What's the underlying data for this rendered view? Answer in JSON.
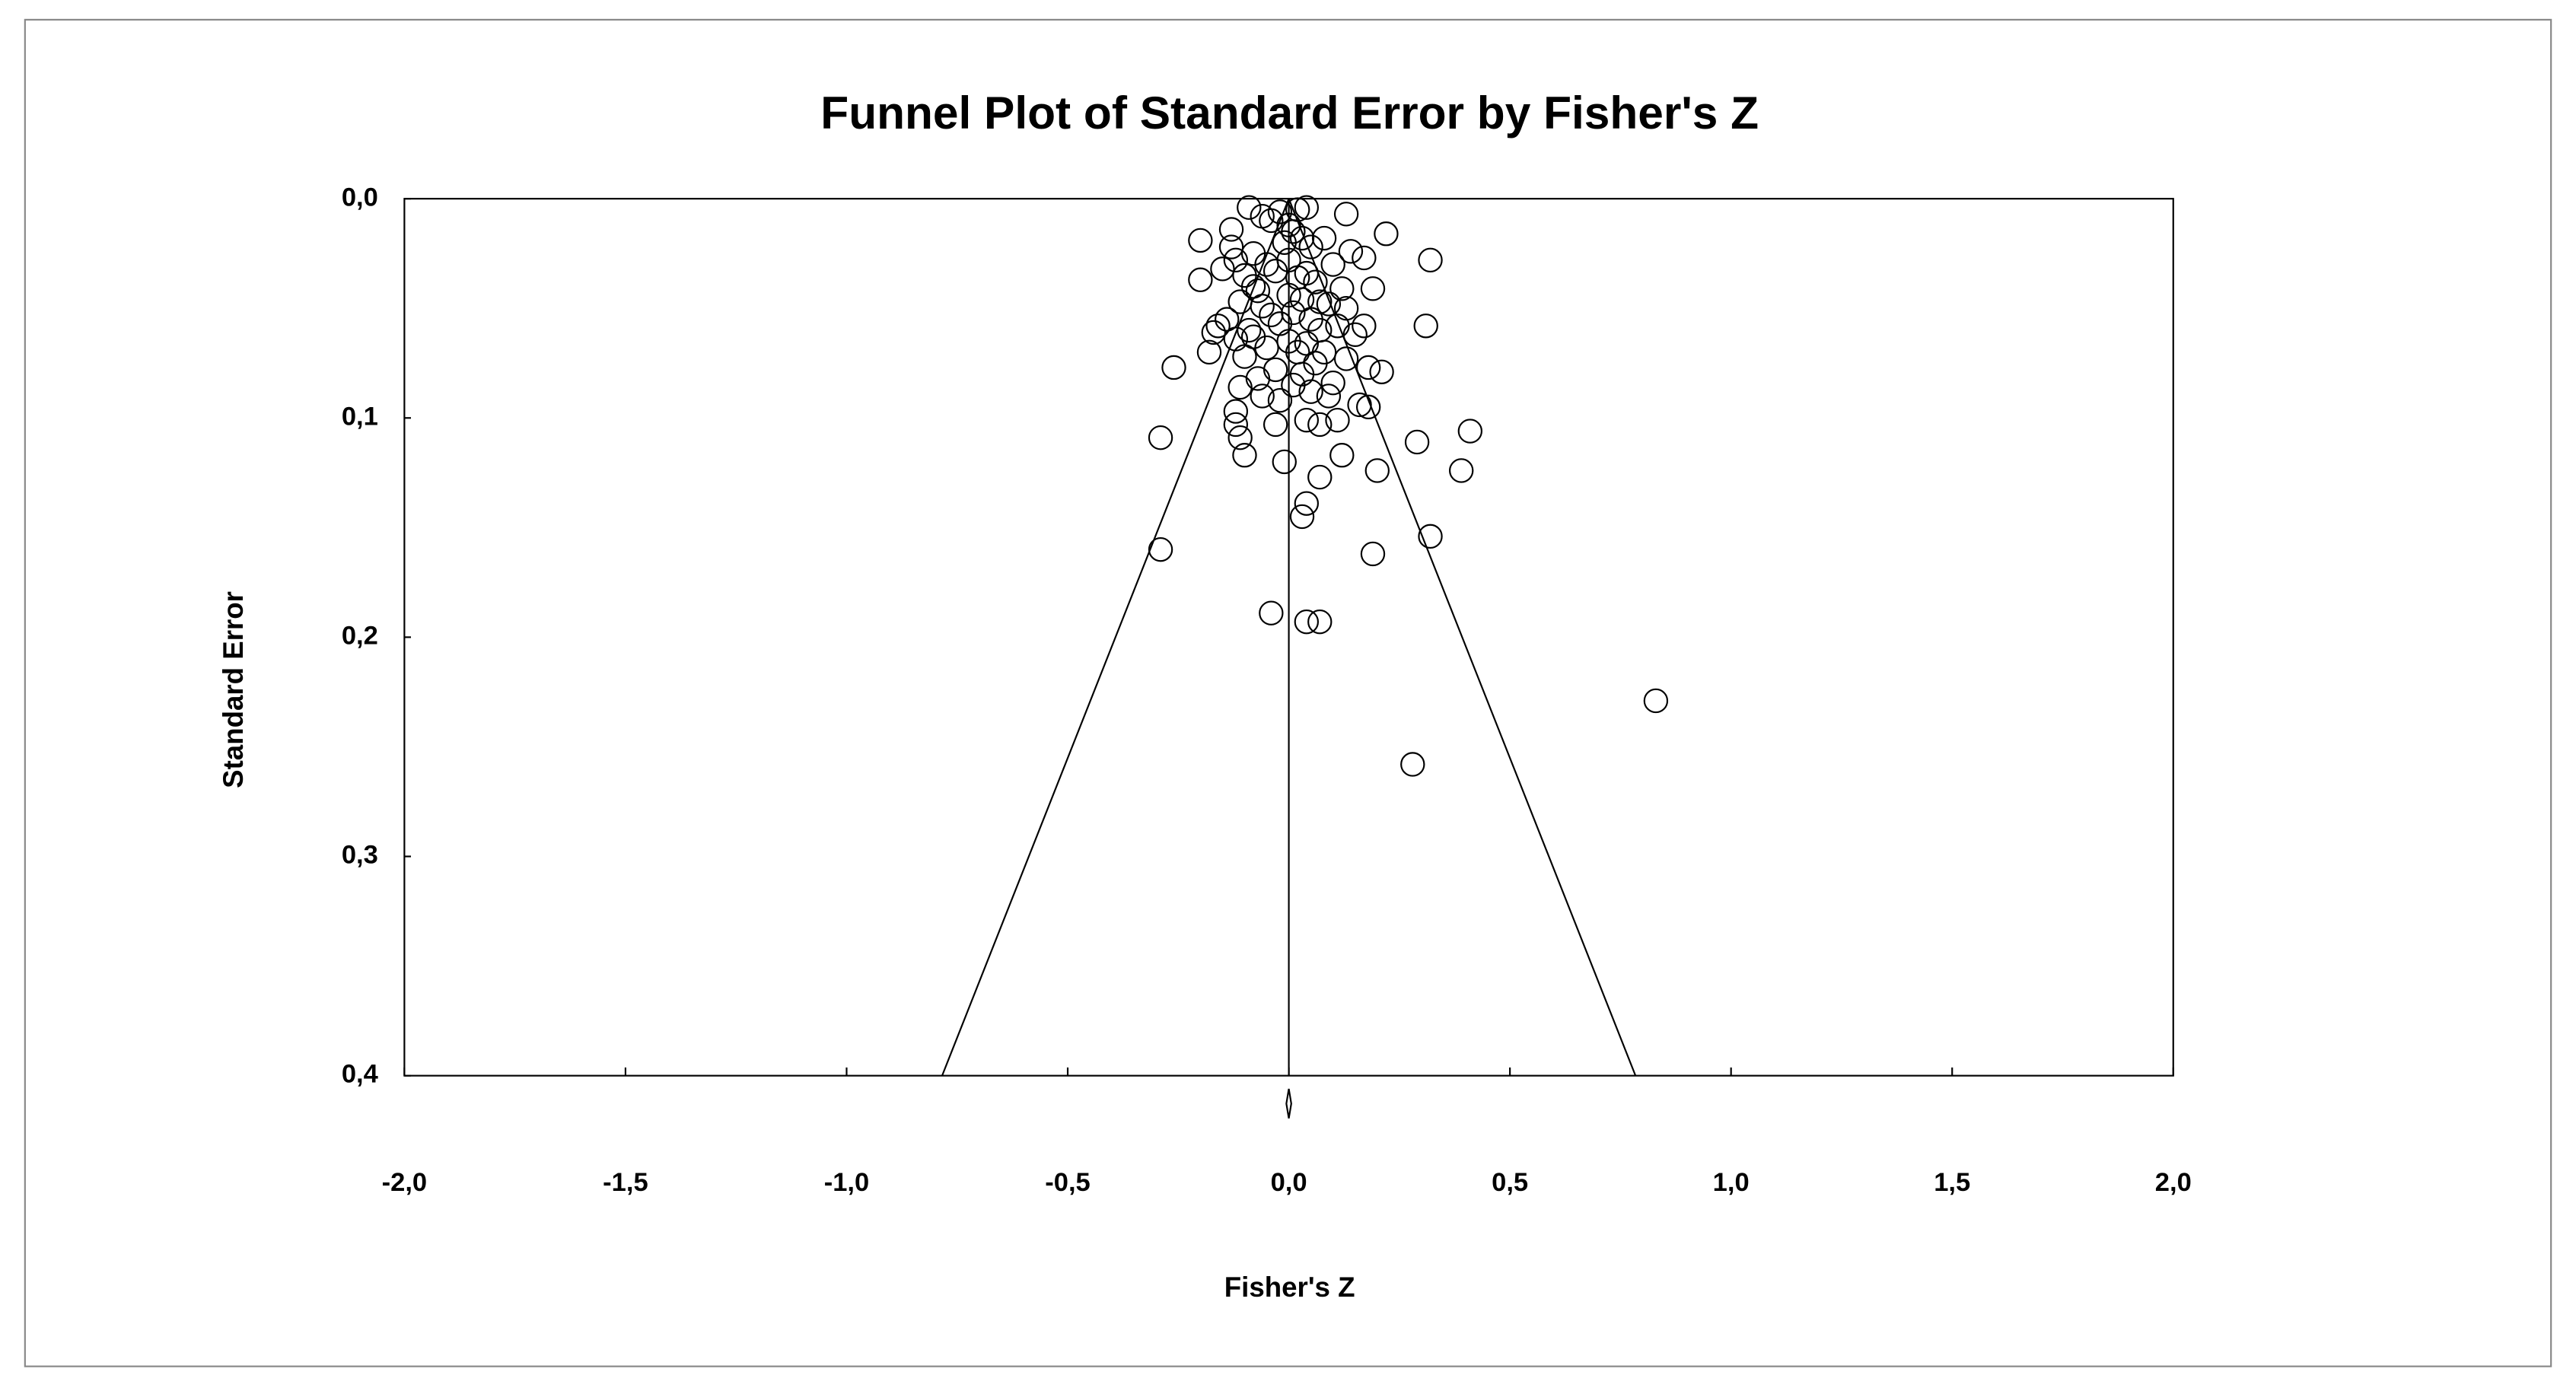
{
  "chart_data": {
    "type": "scatter",
    "title": "Funnel Plot of Standard Error by Fisher's Z",
    "xlabel": "Fisher's Z",
    "ylabel": "Standard Error",
    "xlim": [
      -2,
      2
    ],
    "ylim": [
      0,
      0.4
    ],
    "y_inverted": true,
    "xticks": [
      {
        "value": -2,
        "label": "-2,0"
      },
      {
        "value": -1.5,
        "label": "-1,5"
      },
      {
        "value": -1,
        "label": "-1,0"
      },
      {
        "value": -0.5,
        "label": "-0,5"
      },
      {
        "value": 0,
        "label": "0,0"
      },
      {
        "value": 0.5,
        "label": "0,5"
      },
      {
        "value": 1,
        "label": "1,0"
      },
      {
        "value": 1.5,
        "label": "1,5"
      },
      {
        "value": 2,
        "label": "2,0"
      }
    ],
    "yticks": [
      {
        "value": 0,
        "label": "0,0"
      },
      {
        "value": 0.1,
        "label": "0,1"
      },
      {
        "value": 0.2,
        "label": "0,2"
      },
      {
        "value": 0.3,
        "label": "0,3"
      },
      {
        "value": 0.4,
        "label": "0,4"
      }
    ],
    "funnel_center": 0,
    "funnel_z": 1.96,
    "color": "#000000",
    "x": [
      0.83,
      0.28,
      -0.04,
      0.04,
      0.07,
      -0.29,
      0.19,
      0.32,
      0.03,
      0.04,
      0.07,
      0.2,
      0.39,
      0.41,
      0.29,
      -0.29,
      0.12,
      -0.01,
      -0.1,
      -0.11,
      -0.12,
      -0.12,
      -0.03,
      0.04,
      0.07,
      0.11,
      0.18,
      -0.26,
      0.21,
      0.18,
      0.31,
      0.32,
      0.22,
      0.13,
      -0.09,
      -0.2,
      -0.2,
      -0.17,
      -0.18,
      0.19,
      0.17,
      0.17,
      -0.06,
      -0.02,
      0.02,
      0.04,
      -0.04,
      0.0,
      0.01,
      0.03,
      -0.01,
      0.05,
      -0.13,
      -0.12,
      -0.08,
      -0.05,
      0.08,
      0.1,
      0.14,
      -0.15,
      -0.1,
      -0.03,
      0.02,
      0.06,
      0.12,
      -0.07,
      0.0,
      0.03,
      -0.11,
      -0.06,
      0.09,
      0.13,
      -0.14,
      -0.04,
      0.01,
      0.05,
      0.11,
      -0.09,
      -0.02,
      0.07,
      0.15,
      -0.16,
      -0.08,
      0.0,
      0.04,
      -0.12,
      -0.05,
      0.02,
      0.08,
      -0.1,
      0.06,
      0.13,
      -0.03,
      0.03,
      -0.07,
      0.1,
      -0.11,
      0.01,
      0.05,
      -0.06,
      -0.02,
      0.09,
      0.16,
      -0.13,
      0.0,
      0.04,
      -0.08,
      0.07
    ],
    "values": [
      0.229,
      0.258,
      0.189,
      0.193,
      0.193,
      0.16,
      0.162,
      0.154,
      0.145,
      0.139,
      0.127,
      0.124,
      0.124,
      0.106,
      0.111,
      0.109,
      0.117,
      0.12,
      0.117,
      0.109,
      0.103,
      0.097,
      0.103,
      0.101,
      0.103,
      0.101,
      0.095,
      0.077,
      0.079,
      0.077,
      0.058,
      0.028,
      0.016,
      0.007,
      0.004,
      0.019,
      0.037,
      0.061,
      0.07,
      0.041,
      0.058,
      0.027,
      0.008,
      0.006,
      0.005,
      0.004,
      0.01,
      0.012,
      0.015,
      0.018,
      0.02,
      0.022,
      0.022,
      0.028,
      0.025,
      0.03,
      0.018,
      0.03,
      0.024,
      0.032,
      0.035,
      0.033,
      0.036,
      0.038,
      0.041,
      0.042,
      0.044,
      0.046,
      0.047,
      0.049,
      0.048,
      0.05,
      0.055,
      0.053,
      0.052,
      0.055,
      0.058,
      0.06,
      0.057,
      0.06,
      0.062,
      0.058,
      0.063,
      0.065,
      0.066,
      0.064,
      0.068,
      0.07,
      0.07,
      0.072,
      0.075,
      0.073,
      0.078,
      0.08,
      0.082,
      0.084,
      0.086,
      0.085,
      0.088,
      0.09,
      0.092,
      0.09,
      0.094,
      0.014,
      0.028,
      0.034,
      0.04,
      0.047
    ]
  }
}
